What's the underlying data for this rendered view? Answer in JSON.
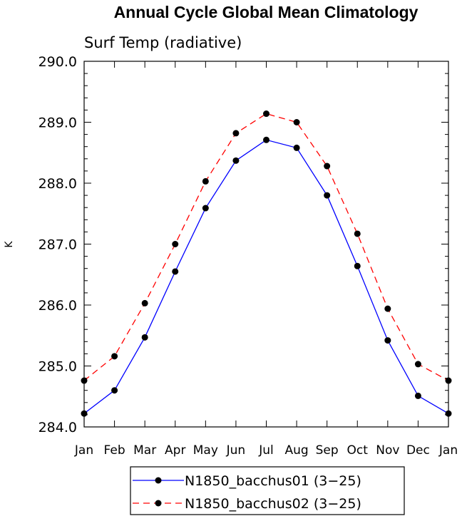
{
  "chart_data": {
    "type": "line",
    "title": "Annual Cycle Global Mean Climatology",
    "subtitle": "Surf Temp (radiative)",
    "xlabel": "",
    "ylabel": "K",
    "categories": [
      "Jan",
      "Feb",
      "Mar",
      "Apr",
      "May",
      "Jun",
      "Jul",
      "Aug",
      "Sep",
      "Oct",
      "Nov",
      "Dec",
      "Jan"
    ],
    "ylim": [
      284.0,
      290.0
    ],
    "yticks": [
      "284.0",
      "285.0",
      "286.0",
      "287.0",
      "288.0",
      "289.0",
      "290.0"
    ],
    "grid": false,
    "legend_position": "bottom",
    "series": [
      {
        "name": "N1850_bacchus01 (3−25)",
        "color": "#0000ff",
        "dash": "solid",
        "marker": "circle",
        "values": [
          284.22,
          284.6,
          285.47,
          286.55,
          287.59,
          288.37,
          288.71,
          288.58,
          287.8,
          286.64,
          285.42,
          284.51,
          284.22
        ]
      },
      {
        "name": "N1850_bacchus02 (3−25)",
        "color": "#ff0000",
        "dash": "dashed",
        "marker": "circle",
        "values": [
          284.76,
          285.16,
          286.03,
          287.0,
          288.03,
          288.82,
          289.14,
          289.0,
          288.28,
          287.17,
          285.94,
          285.03,
          284.76
        ]
      }
    ]
  }
}
